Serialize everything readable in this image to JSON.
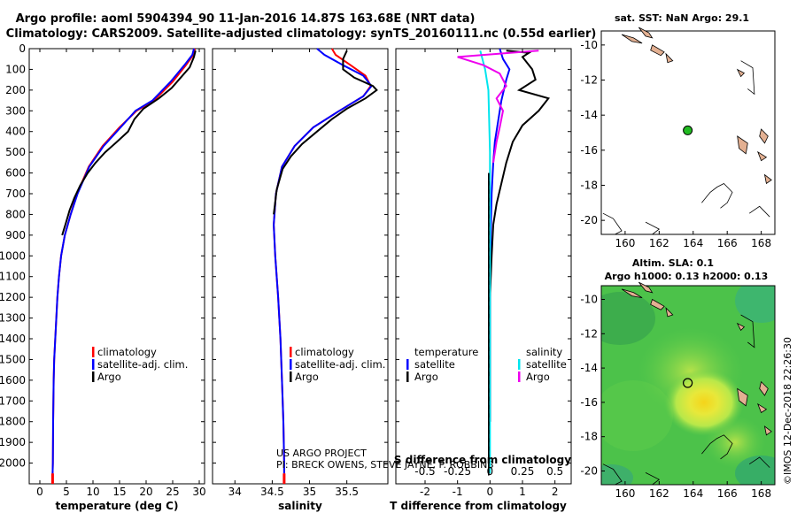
{
  "header": {
    "title1": "Argo profile: aoml 5904394_90 11-Jan-2016 14.87S 163.68E (NRT data)",
    "title2": "Climatology: CARS2009. Satellite-adjusted climatology: synTS_20160111.nc (0.55d earlier)"
  },
  "chart_data": [
    {
      "type": "line",
      "name": "temperature-profile",
      "xlabel": "temperature (deg C)",
      "ylabel": "",
      "xlim": [
        -2,
        31
      ],
      "ylim": [
        2100,
        0
      ],
      "xticks": [
        0,
        5,
        10,
        15,
        20,
        25,
        30
      ],
      "yticks": [
        0,
        100,
        200,
        300,
        400,
        500,
        600,
        700,
        800,
        900,
        1000,
        1100,
        1200,
        1300,
        1400,
        1500,
        1600,
        1700,
        1800,
        1900,
        2000
      ],
      "legend": [
        "climatology",
        "satellite-adj. clim.",
        "Argo"
      ],
      "series": [
        {
          "name": "climatology",
          "color": "#ff0000",
          "x": [
            29.2,
            28.9,
            27.5,
            25.0,
            21.5,
            18.2,
            15.0,
            11.8,
            9.2,
            7.0,
            5.8,
            4.7,
            4.0,
            3.6,
            3.3,
            3.1,
            2.9,
            2.7,
            2.6,
            2.5,
            2.45,
            2.4
          ],
          "y": [
            0,
            30,
            80,
            160,
            250,
            300,
            380,
            470,
            570,
            700,
            800,
            900,
            1000,
            1100,
            1200,
            1300,
            1400,
            1500,
            1600,
            1800,
            2000,
            2050
          ]
        },
        {
          "name": "satellite-adj. clim.",
          "color": "#0000ff",
          "x": [
            29.0,
            28.7,
            27.2,
            24.6,
            21.2,
            18.0,
            15.2,
            12.0,
            9.3,
            7.1,
            5.8,
            4.7,
            4.0,
            3.6,
            3.3,
            3.1,
            2.9,
            2.7,
            2.6,
            2.5,
            2.45,
            2.4
          ],
          "y": [
            0,
            30,
            80,
            160,
            250,
            300,
            380,
            470,
            570,
            700,
            800,
            900,
            1000,
            1100,
            1200,
            1300,
            1400,
            1500,
            1600,
            1800,
            2000,
            2050
          ]
        },
        {
          "name": "Argo",
          "color": "#000000",
          "x": [
            29.3,
            29.0,
            28.2,
            26.5,
            24.8,
            22.4,
            19.5,
            17.8,
            16.6,
            14.5,
            12.3,
            10.5,
            9.0,
            7.6,
            6.5,
            5.6,
            4.8,
            4.2
          ],
          "y": [
            10,
            40,
            90,
            140,
            190,
            240,
            290,
            340,
            400,
            450,
            500,
            550,
            600,
            660,
            720,
            780,
            850,
            900
          ]
        }
      ]
    },
    {
      "type": "line",
      "name": "salinity-profile",
      "xlabel": "salinity",
      "xlim": [
        33.7,
        36.05
      ],
      "ylim": [
        2100,
        0
      ],
      "xticks": [
        34,
        34.5,
        35,
        35.5
      ],
      "legend": [
        "climatology",
        "satellite-adj. clim.",
        "Argo"
      ],
      "series": [
        {
          "name": "climatology",
          "color": "#ff0000",
          "x": [
            35.3,
            35.35,
            35.55,
            35.75,
            35.82,
            35.72,
            35.4,
            35.05,
            34.8,
            34.63,
            34.55,
            34.52,
            34.54,
            34.58,
            34.61,
            34.63,
            34.65,
            34.66,
            34.66
          ],
          "y": [
            0,
            30,
            80,
            130,
            180,
            230,
            300,
            380,
            470,
            570,
            700,
            850,
            1000,
            1200,
            1400,
            1600,
            1800,
            2000,
            2050
          ]
        },
        {
          "name": "satellite-adj. clim.",
          "color": "#0000ff",
          "x": [
            35.1,
            35.2,
            35.45,
            35.72,
            35.83,
            35.72,
            35.4,
            35.05,
            34.8,
            34.63,
            34.55,
            34.52,
            34.54,
            34.58,
            34.61,
            34.63,
            34.65,
            34.66,
            34.66
          ],
          "y": [
            0,
            30,
            80,
            130,
            180,
            230,
            300,
            380,
            470,
            570,
            700,
            850,
            1000,
            1200,
            1400,
            1600,
            1800,
            2000,
            2050
          ]
        },
        {
          "name": "Argo",
          "color": "#000000",
          "x": [
            35.5,
            35.45,
            35.45,
            35.6,
            35.85,
            35.9,
            35.75,
            35.5,
            35.3,
            35.1,
            34.9,
            34.75,
            34.64,
            34.56,
            34.52
          ],
          "y": [
            10,
            50,
            100,
            140,
            180,
            200,
            240,
            290,
            340,
            400,
            460,
            520,
            580,
            680,
            800
          ]
        }
      ]
    },
    {
      "type": "line",
      "name": "difference-profile",
      "xlabel": "T difference from climatology",
      "xlabel_top": "S difference from climatology",
      "xlim": [
        -2.9,
        2.5
      ],
      "ylim": [
        2100,
        0
      ],
      "xticks": [
        -2,
        -1,
        0,
        1,
        2
      ],
      "xtick_labels_S": [
        "-0.5",
        "-0.25",
        "0",
        "0.25",
        "0.5"
      ],
      "legend_left_title": "temperature",
      "legend_right_title": "salinity",
      "legend": [
        "satellite",
        "Argo",
        "satellite",
        "Argo"
      ],
      "series": [
        {
          "name": "temperature satellite",
          "color": "#0000ff",
          "x": [
            0.3,
            0.4,
            0.6,
            0.5,
            0.35,
            0.25,
            0.15,
            0.1,
            0.05,
            0.02,
            0.0,
            0.0
          ],
          "y": [
            0,
            50,
            100,
            150,
            250,
            350,
            450,
            550,
            700,
            900,
            1200,
            1800
          ]
        },
        {
          "name": "temperature Argo",
          "color": "#000000",
          "x": [
            0.5,
            1.2,
            1.0,
            1.3,
            1.4,
            0.9,
            1.8,
            1.5,
            1.0,
            0.7,
            0.5,
            0.35,
            0.2,
            0.1,
            0.05,
            0.0,
            0.0
          ],
          "y": [
            10,
            20,
            40,
            100,
            150,
            200,
            240,
            300,
            370,
            450,
            550,
            650,
            750,
            850,
            1000,
            1200,
            1800
          ]
        },
        {
          "name": "salinity satellite",
          "color": "#00e5ee",
          "x": [
            -0.3,
            -0.15,
            -0.05,
            0.0,
            0.0,
            0.0
          ],
          "y": [
            10,
            100,
            200,
            500,
            1200,
            2050
          ]
        },
        {
          "name": "salinity Argo",
          "color": "#ee00ee",
          "x": [
            1.5,
            -1.0,
            -0.2,
            0.3,
            0.5,
            0.2,
            0.4,
            0.3,
            0.2,
            0.1
          ],
          "y": [
            10,
            40,
            80,
            120,
            180,
            240,
            300,
            380,
            450,
            550
          ]
        }
      ]
    },
    {
      "type": "map",
      "name": "sst-map",
      "title": "sat. SST: NaN Argo: 29.1",
      "xlim": [
        158.6,
        168.8
      ],
      "ylim": [
        -20.8,
        -9.2
      ],
      "xticks": [
        160,
        162,
        164,
        166,
        168
      ],
      "yticks": [
        -10,
        -12,
        -14,
        -16,
        -18,
        -20
      ],
      "float_position": {
        "lon": 163.68,
        "lat": -14.87
      }
    },
    {
      "type": "map",
      "name": "sla-map",
      "title": "Altim. SLA: 0.1",
      "subtitle": "Argo h1000: 0.13 h2000: 0.13",
      "xlim": [
        158.6,
        168.8
      ],
      "ylim": [
        -20.8,
        -9.2
      ],
      "xticks": [
        160,
        162,
        164,
        166,
        168
      ],
      "yticks": [
        -10,
        -12,
        -14,
        -16,
        -18,
        -20
      ],
      "float_position": {
        "lon": 163.68,
        "lat": -14.87
      }
    }
  ],
  "credits": {
    "line1": "US ARGO PROJECT",
    "line2": "PI: BRECK OWENS, STEVE JAYNE, P. ROBBINS"
  },
  "watermark": "©IMOS 12-Dec-2018 22:26:30",
  "colors": {
    "climatology": "#ff0000",
    "satellite": "#0000ff",
    "argo": "#000000",
    "sal_satellite": "#00e5ee",
    "sal_argo": "#ee00ee",
    "float_marker": "#22bb22"
  }
}
